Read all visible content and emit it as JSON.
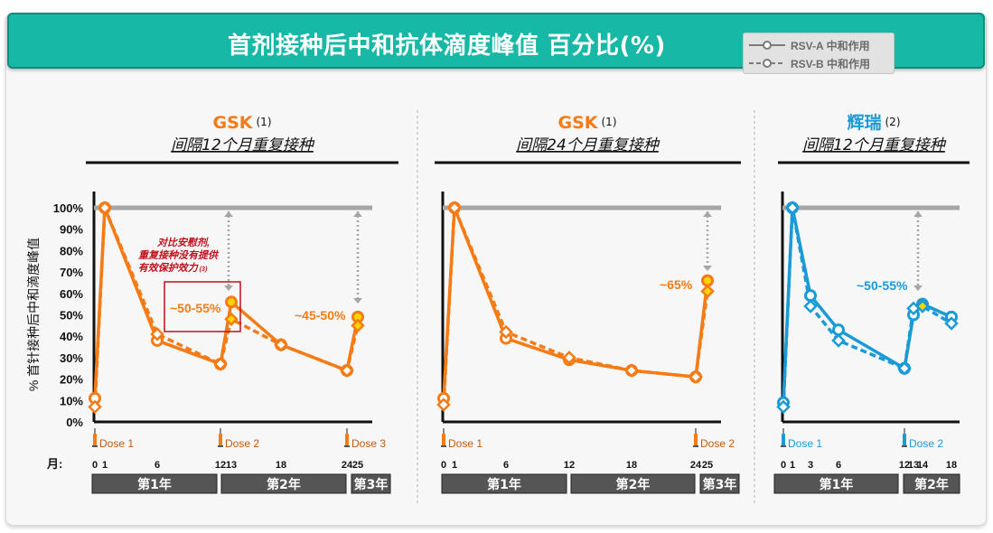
{
  "header": {
    "title": "首剂接种后中和抗体滴度峰值 百分比(%)",
    "legend": [
      {
        "label": "RSV-A 中和作用",
        "style": "solid"
      },
      {
        "label": "RSV-B 中和作用",
        "style": "dashed"
      }
    ]
  },
  "y_axis": {
    "label": "% 首针接种后中和滴度峰值",
    "ticks": [
      "100%",
      "90%",
      "80%",
      "70%",
      "60%",
      "50%",
      "40%",
      "30%",
      "20%",
      "10%",
      "0%"
    ]
  },
  "month_label": "月:",
  "colors": {
    "gsk": "#f47b16",
    "pfizer": "#1a9ad6",
    "reference": "#a6a6a6",
    "note": "#c0101c",
    "year_bar": "#555555"
  },
  "chart_data": [
    {
      "type": "line",
      "brand": "GSK",
      "ref": "(1)",
      "subtitle": "间隔12个月重复接种",
      "ylim": [
        0,
        100
      ],
      "x_ticks": [
        "0",
        "1",
        "6",
        "12",
        "13",
        "18",
        "24",
        "25"
      ],
      "series": [
        {
          "name": "RSV-A 中和作用",
          "x": [
            0,
            1,
            6,
            12,
            13,
            18,
            24,
            25
          ],
          "y": [
            11,
            100,
            38,
            27,
            56,
            36,
            24,
            49
          ]
        },
        {
          "name": "RSV-B 中和作用",
          "x": [
            0,
            1,
            6,
            12,
            13,
            18,
            24,
            25
          ],
          "y": [
            7,
            100,
            41,
            27,
            48,
            36,
            24,
            45
          ]
        }
      ],
      "doses": [
        {
          "label": "Dose 1",
          "month": 0
        },
        {
          "label": "Dose 2",
          "month": 12
        },
        {
          "label": "Dose 3",
          "month": 24
        }
      ],
      "years": [
        "第1年",
        "第2年",
        "第3年"
      ],
      "annotations": [
        {
          "text": "~50-55%",
          "boxed": true
        },
        {
          "text": "~45-50%",
          "boxed": false
        }
      ],
      "note": [
        "对比安慰剂,",
        "重复接种没有提供",
        "有效保护效力"
      ],
      "note_ref": "(3)"
    },
    {
      "type": "line",
      "brand": "GSK",
      "ref": "(1)",
      "subtitle": "间隔24个月重复接种",
      "ylim": [
        0,
        100
      ],
      "x_ticks": [
        "0",
        "1",
        "6",
        "12",
        "18",
        "24",
        "25"
      ],
      "series": [
        {
          "name": "RSV-A 中和作用",
          "x": [
            0,
            1,
            6,
            12,
            18,
            24,
            25
          ],
          "y": [
            11,
            100,
            39,
            29,
            24,
            21,
            66
          ]
        },
        {
          "name": "RSV-B 中和作用",
          "x": [
            0,
            1,
            6,
            12,
            18,
            24,
            25
          ],
          "y": [
            8,
            100,
            42,
            30,
            24,
            21,
            61
          ]
        }
      ],
      "doses": [
        {
          "label": "Dose 1",
          "month": 0
        },
        {
          "label": "Dose 2",
          "month": 24
        }
      ],
      "years": [
        "第1年",
        "第2年",
        "第3年"
      ],
      "annotations": [
        {
          "text": "~65%",
          "boxed": false
        }
      ]
    },
    {
      "type": "line",
      "brand": "辉瑞",
      "ref": "(2)",
      "subtitle": "间隔12个月重复接种",
      "ylim": [
        0,
        100
      ],
      "x_ticks": [
        "0",
        "1",
        "3",
        "6",
        "12",
        "13",
        "14",
        "18"
      ],
      "series": [
        {
          "name": "RSV-A 中和作用",
          "x": [
            0,
            1,
            3,
            6,
            12,
            13,
            14,
            18
          ],
          "y": [
            9,
            100,
            59,
            43,
            25,
            50,
            55,
            49
          ]
        },
        {
          "name": "RSV-B 中和作用",
          "x": [
            0,
            1,
            3,
            6,
            12,
            13,
            14,
            18
          ],
          "y": [
            7,
            100,
            54,
            38,
            25,
            53,
            54,
            46
          ]
        }
      ],
      "doses": [
        {
          "label": "Dose 1",
          "month": 0
        },
        {
          "label": "Dose 2",
          "month": 12
        }
      ],
      "years": [
        "第1年",
        "第2年"
      ],
      "annotations": [
        {
          "text": "~50-55%",
          "boxed": false
        }
      ]
    }
  ]
}
